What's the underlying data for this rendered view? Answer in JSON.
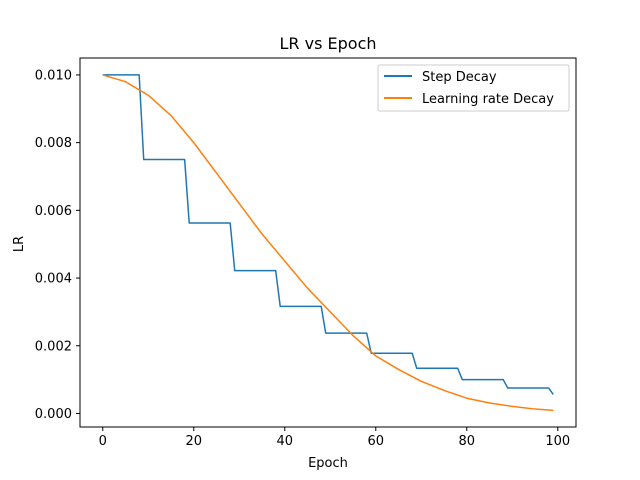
{
  "chart_data": {
    "type": "line",
    "title": "LR vs Epoch",
    "xlabel": "Epoch",
    "ylabel": "LR",
    "xlim": [
      -5,
      104
    ],
    "ylim": [
      -0.0004,
      0.0105
    ],
    "xticks": [
      0,
      20,
      40,
      60,
      80,
      100
    ],
    "xtick_labels": [
      "0",
      "20",
      "40",
      "60",
      "80",
      "100"
    ],
    "yticks": [
      0.0,
      0.002,
      0.004,
      0.006,
      0.008,
      0.01
    ],
    "ytick_labels": [
      "0.000",
      "0.002",
      "0.004",
      "0.006",
      "0.008",
      "0.010"
    ],
    "grid": false,
    "legend_position": "top-right",
    "series": [
      {
        "name": "Step Decay",
        "color": "#1f77b4",
        "step": {
          "initial": 0.01,
          "drop": 0.75,
          "first_drop_epoch": 9,
          "every": 10,
          "epochs": [
            0,
            99
          ]
        }
      },
      {
        "name": "Learning rate Decay",
        "color": "#ff7f0e",
        "x": [
          0,
          5,
          10,
          15,
          20,
          25,
          30,
          35,
          40,
          45,
          50,
          55,
          60,
          65,
          70,
          75,
          80,
          85,
          90,
          95,
          99
        ],
        "values": [
          0.01,
          0.0098,
          0.0094,
          0.0088,
          0.008,
          0.0071,
          0.0062,
          0.0053,
          0.0045,
          0.0037,
          0.003,
          0.0023,
          0.0017,
          0.0013,
          0.00095,
          0.00068,
          0.00045,
          0.00031,
          0.00021,
          0.00013,
          9e-05
        ]
      }
    ]
  }
}
